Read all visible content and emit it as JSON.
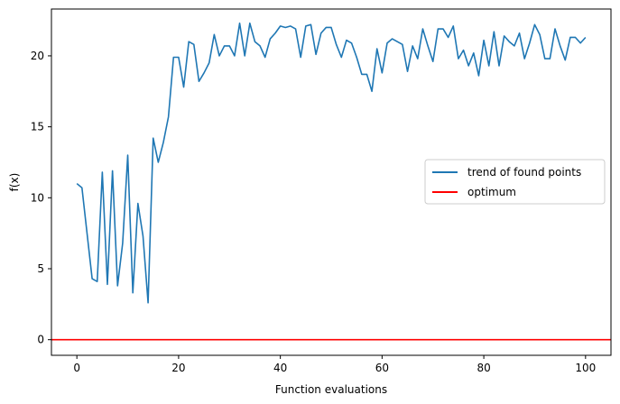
{
  "chart_data": {
    "type": "line",
    "xlabel": "Function evaluations",
    "ylabel": "f(x)",
    "xlim": [
      -5,
      105
    ],
    "ylim": [
      -1.1,
      23.3
    ],
    "x_ticks": [
      0,
      20,
      40,
      60,
      80,
      100
    ],
    "y_ticks": [
      0,
      5,
      10,
      15,
      20
    ],
    "grid": false,
    "legend_position": "center-right",
    "series": [
      {
        "name": "trend of found points",
        "color": "#1f77b4",
        "x": [
          0,
          1,
          2,
          3,
          4,
          5,
          6,
          7,
          8,
          9,
          10,
          11,
          12,
          13,
          14,
          15,
          16,
          17,
          18,
          19,
          20,
          21,
          22,
          23,
          24,
          25,
          26,
          27,
          28,
          29,
          30,
          31,
          32,
          33,
          34,
          35,
          36,
          37,
          38,
          39,
          40,
          41,
          42,
          43,
          44,
          45,
          46,
          47,
          48,
          49,
          50,
          51,
          52,
          53,
          54,
          55,
          56,
          57,
          58,
          59,
          60,
          61,
          62,
          63,
          64,
          65,
          66,
          67,
          68,
          69,
          70,
          71,
          72,
          73,
          74,
          75,
          76,
          77,
          78,
          79,
          80,
          81,
          82,
          83,
          84,
          85,
          86,
          87,
          88,
          89,
          90,
          91,
          92,
          93,
          94,
          95,
          96,
          97,
          98,
          99,
          100
        ],
        "y": [
          11.0,
          10.7,
          7.5,
          4.3,
          4.1,
          11.8,
          3.9,
          11.9,
          3.8,
          6.8,
          13.0,
          3.3,
          9.6,
          7.3,
          2.6,
          14.2,
          12.5,
          13.9,
          15.7,
          19.9,
          19.9,
          17.8,
          21.0,
          20.8,
          18.2,
          18.8,
          19.5,
          21.5,
          20.0,
          20.7,
          20.7,
          20.0,
          22.3,
          20.0,
          22.3,
          21.0,
          20.7,
          19.9,
          21.2,
          21.6,
          22.1,
          22.0,
          22.1,
          21.9,
          19.9,
          22.1,
          22.2,
          20.1,
          21.6,
          22.0,
          22.0,
          20.8,
          19.9,
          21.1,
          20.9,
          19.9,
          18.7,
          18.7,
          17.5,
          20.5,
          18.8,
          20.9,
          21.2,
          21.0,
          20.8,
          18.9,
          20.7,
          19.8,
          21.9,
          20.7,
          19.6,
          21.9,
          21.9,
          21.3,
          22.1,
          19.8,
          20.4,
          19.3,
          20.2,
          18.6,
          21.1,
          19.3,
          21.7,
          19.3,
          21.4,
          21.0,
          20.7,
          21.6,
          19.8,
          20.9,
          22.2,
          21.5,
          19.8,
          19.8,
          21.9,
          20.7,
          19.7,
          21.3,
          21.3,
          20.9,
          21.3
        ]
      },
      {
        "name": "optimum",
        "color": "#ff0000",
        "kind": "hline",
        "y": 0
      }
    ]
  }
}
